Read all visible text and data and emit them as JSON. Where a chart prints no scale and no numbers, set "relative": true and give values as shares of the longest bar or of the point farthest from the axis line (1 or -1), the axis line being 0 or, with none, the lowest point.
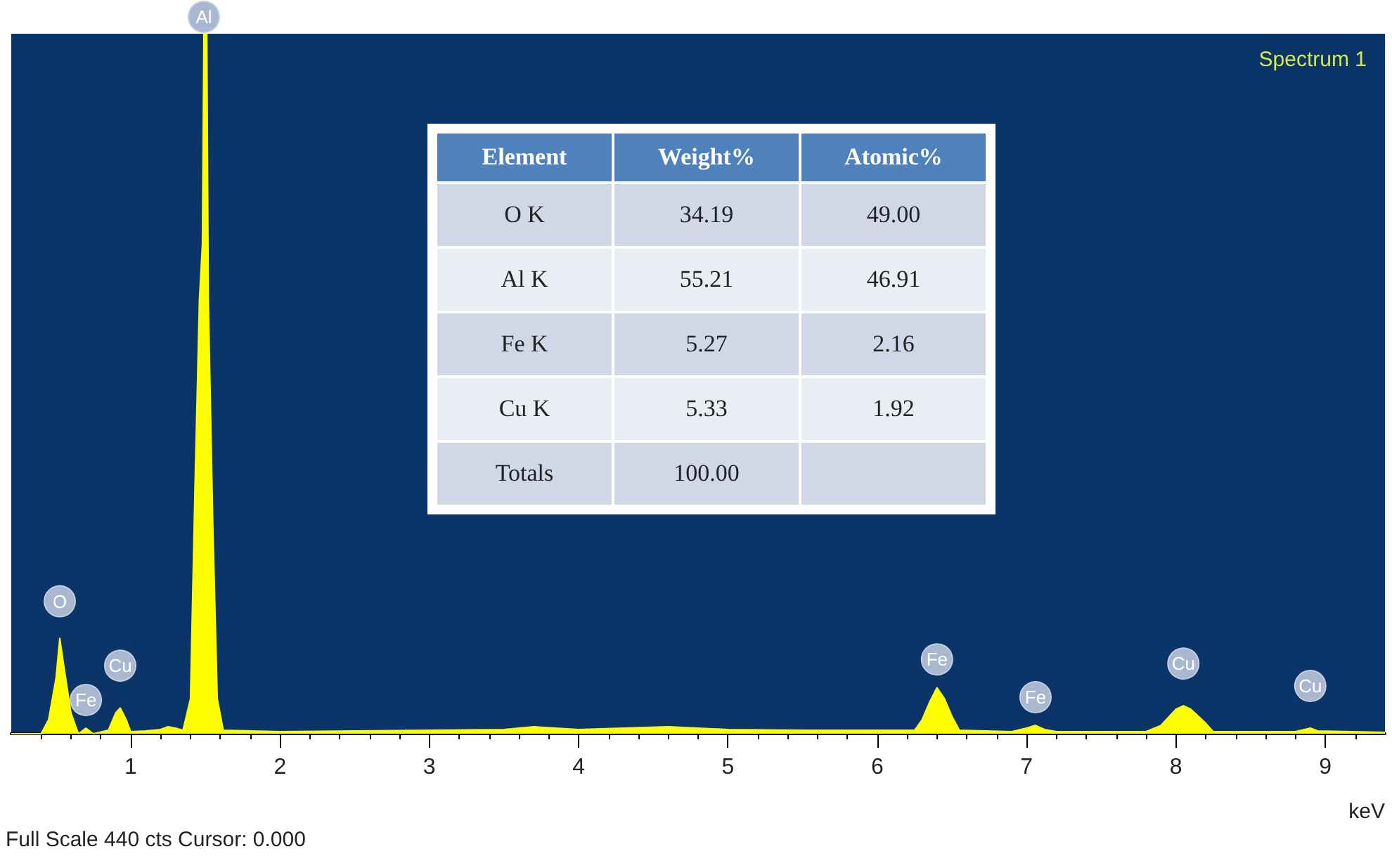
{
  "chart_data": [
    {
      "type": "area",
      "title": "Spectrum 1",
      "xlabel": "keV",
      "relative": true,
      "color": "#ffff00",
      "grid": false,
      "xlim": [
        0.2,
        9.4
      ],
      "xticks": [
        1,
        2,
        3,
        4,
        5,
        6,
        7,
        8,
        9
      ],
      "x": [
        0.2,
        0.4,
        0.45,
        0.5,
        0.525,
        0.55,
        0.6,
        0.65,
        0.7,
        0.75,
        0.85,
        0.9,
        0.93,
        0.97,
        1.0,
        1.1,
        1.2,
        1.25,
        1.3,
        1.35,
        1.4,
        1.43,
        1.46,
        1.48,
        1.49,
        1.51,
        1.52,
        1.55,
        1.58,
        1.62,
        2.0,
        2.5,
        3.0,
        3.5,
        3.7,
        4.0,
        4.3,
        4.6,
        5.0,
        5.5,
        6.0,
        6.25,
        6.3,
        6.35,
        6.4,
        6.45,
        6.5,
        6.55,
        6.9,
        7.0,
        7.06,
        7.12,
        7.2,
        7.8,
        7.9,
        8.0,
        8.05,
        8.1,
        8.2,
        8.25,
        8.8,
        8.9,
        8.95,
        9.4
      ],
      "values": [
        0,
        0,
        0.02,
        0.08,
        0.137,
        0.1,
        0.03,
        0,
        0.008,
        0,
        0.005,
        0.03,
        0.037,
        0.02,
        0.003,
        0.004,
        0.006,
        0.01,
        0.008,
        0.005,
        0.05,
        0.35,
        0.62,
        0.7,
        1.0,
        1.0,
        0.62,
        0.3,
        0.05,
        0.005,
        0.003,
        0.004,
        0.005,
        0.006,
        0.01,
        0.006,
        0.008,
        0.01,
        0.006,
        0.005,
        0.005,
        0.005,
        0.02,
        0.045,
        0.066,
        0.05,
        0.025,
        0.005,
        0.003,
        0.008,
        0.012,
        0.006,
        0.003,
        0.003,
        0.012,
        0.035,
        0.04,
        0.035,
        0.015,
        0.003,
        0.003,
        0.008,
        0.004,
        0.002
      ],
      "annotations": [
        {
          "text": "O",
          "x": 0.525,
          "y": 0.137
        },
        {
          "text": "Fe",
          "x": 0.7,
          "y": 0.008
        },
        {
          "text": "Cu",
          "x": 0.93,
          "y": 0.037
        },
        {
          "text": "Al",
          "x": 1.49,
          "y": 1.0
        },
        {
          "text": "Fe",
          "x": 6.4,
          "y": 0.066
        },
        {
          "text": "Fe",
          "x": 7.06,
          "y": 0.012
        },
        {
          "text": "Cu",
          "x": 8.05,
          "y": 0.04
        },
        {
          "text": "Cu",
          "x": 8.9,
          "y": 0.008
        },
        "Full Scale 440 cts Cursor: 0.000"
      ]
    },
    {
      "type": "other",
      "categories": [
        "Element",
        "Weight%",
        "Atomic%"
      ],
      "y_categories": [
        "O K",
        "Al K",
        "Fe K",
        "Cu K",
        "Totals"
      ],
      "cell_labels": [
        [
          "34.19",
          "49.00"
        ],
        [
          "55.21",
          "46.91"
        ],
        [
          "5.27",
          "2.16"
        ],
        [
          "5.33",
          "1.92"
        ],
        [
          "100.00",
          null
        ]
      ]
    }
  ]
}
